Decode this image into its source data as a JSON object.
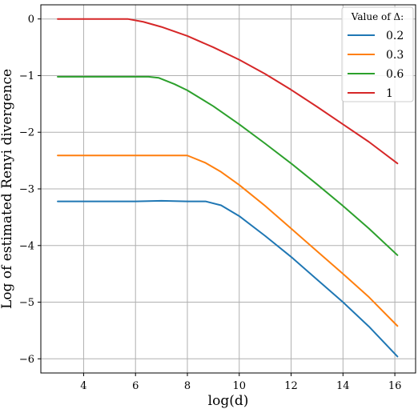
{
  "chart_data": {
    "type": "line",
    "xlabel": "log(d)",
    "ylabel": "Log of estimated Renyi divergence",
    "xlim": [
      2.35,
      16.8
    ],
    "ylim": [
      -6.25,
      0.25
    ],
    "xticks": [
      4,
      6,
      8,
      10,
      12,
      14,
      16
    ],
    "yticks": [
      0,
      -1,
      -2,
      -3,
      -4,
      -5,
      -6
    ],
    "grid": true,
    "legend": {
      "title": "Value of Δ:",
      "placement": "top-right"
    },
    "series": [
      {
        "name": "0.2",
        "color": "#1f77b4",
        "x": [
          3.0,
          4.0,
          5.0,
          6.0,
          7.0,
          8.0,
          8.7,
          9.3,
          10.0,
          11.0,
          12.0,
          13.0,
          14.0,
          15.0,
          16.1
        ],
        "y": [
          -3.22,
          -3.22,
          -3.22,
          -3.22,
          -3.21,
          -3.22,
          -3.22,
          -3.29,
          -3.48,
          -3.83,
          -4.2,
          -4.6,
          -5.0,
          -5.43,
          -5.96
        ]
      },
      {
        "name": "0.3",
        "color": "#ff7f0e",
        "x": [
          3.0,
          4.0,
          5.0,
          6.0,
          7.0,
          8.0,
          8.7,
          9.3,
          10.0,
          11.0,
          12.0,
          13.0,
          14.0,
          15.0,
          16.1
        ],
        "y": [
          -2.41,
          -2.41,
          -2.41,
          -2.41,
          -2.41,
          -2.41,
          -2.54,
          -2.7,
          -2.93,
          -3.3,
          -3.7,
          -4.1,
          -4.5,
          -4.91,
          -5.42
        ]
      },
      {
        "name": "0.6",
        "color": "#2ca02c",
        "x": [
          3.0,
          4.0,
          5.0,
          6.0,
          6.5,
          6.9,
          7.5,
          8.0,
          9.0,
          10.0,
          11.0,
          12.0,
          13.0,
          14.0,
          15.0,
          16.1
        ],
        "y": [
          -1.02,
          -1.02,
          -1.02,
          -1.02,
          -1.02,
          -1.04,
          -1.15,
          -1.26,
          -1.54,
          -1.86,
          -2.2,
          -2.55,
          -2.92,
          -3.3,
          -3.7,
          -4.17
        ]
      },
      {
        "name": "1",
        "color": "#d62728",
        "x": [
          3.0,
          4.0,
          5.0,
          5.7,
          6.3,
          7.0,
          8.0,
          9.0,
          10.0,
          11.0,
          12.0,
          13.0,
          14.0,
          15.0,
          16.1
        ],
        "y": [
          0.0,
          0.0,
          0.0,
          0.0,
          -0.05,
          -0.14,
          -0.3,
          -0.5,
          -0.72,
          -0.97,
          -1.25,
          -1.55,
          -1.86,
          -2.17,
          -2.55
        ]
      }
    ]
  }
}
